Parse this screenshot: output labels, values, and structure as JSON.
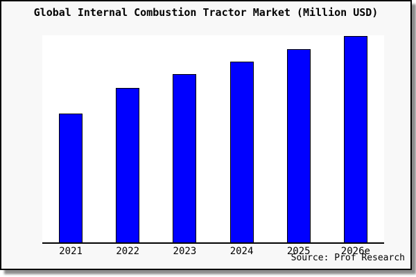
{
  "chart_data": {
    "type": "bar",
    "title": "Global Internal Combustion Tractor Market (Million USD)",
    "categories": [
      "2021",
      "2022",
      "2023",
      "2024",
      "2025",
      "2026e"
    ],
    "values_indexed_2021_100": [
      100,
      120,
      130,
      140,
      150,
      160
    ],
    "bar_height_pct_of_plot": [
      62.2,
      74.6,
      81.3,
      87.3,
      93.3,
      99.7
    ],
    "xlabel": "",
    "ylabel": "",
    "y_axis_tick_labels": "none",
    "gridlines": false,
    "legend": false,
    "source_note": "Source: Prof Research"
  },
  "colors": {
    "bar_fill": "#0000ff",
    "bar_border": "#000000",
    "frame_background": "#f8f8f8",
    "plot_background": "#ffffff",
    "axis_line": "#000000",
    "text": "#000000"
  }
}
